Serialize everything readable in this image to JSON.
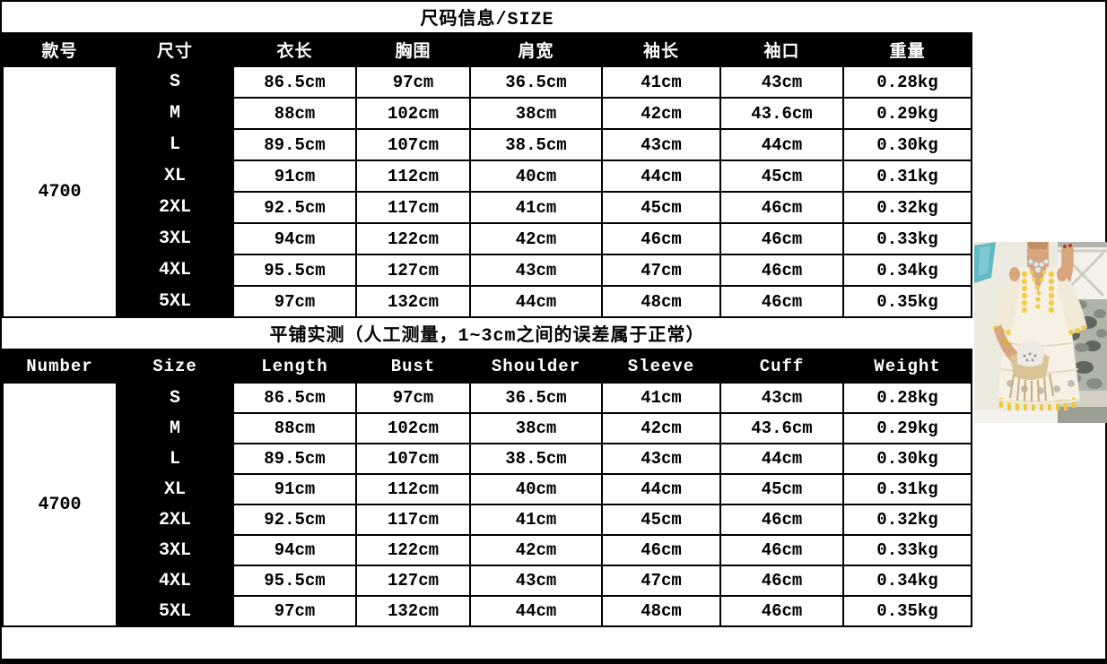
{
  "sheet": {
    "title": "尺码信息/SIZE",
    "note": "平铺实测（人工测量，1~3cm之间的误差属于正常）",
    "product_number": "4700"
  },
  "tables": [
    {
      "id": "cn",
      "title": "尺码信息/SIZE",
      "headers": [
        "款号",
        "尺寸",
        "衣长",
        "胸围",
        "肩宽",
        "袖长",
        "袖口",
        "重量"
      ]
    },
    {
      "id": "en",
      "title": "平铺实测（人工测量，1~3cm之间的误差属于正常）",
      "headers": [
        "Number",
        "Size",
        "Length",
        "Bust",
        "Shoulder",
        "Sleeve",
        "Cuff",
        "Weight"
      ]
    }
  ],
  "rows": [
    [
      "S",
      "86.5cm",
      "97cm",
      "36.5cm",
      "41cm",
      "43cm",
      "0.28kg"
    ],
    [
      "M",
      "88cm",
      "102cm",
      "38cm",
      "42cm",
      "43.6cm",
      "0.29kg"
    ],
    [
      "L",
      "89.5cm",
      "107cm",
      "38.5cm",
      "43cm",
      "44cm",
      "0.30kg"
    ],
    [
      "XL",
      "91cm",
      "112cm",
      "40cm",
      "44cm",
      "45cm",
      "0.31kg"
    ],
    [
      "2XL",
      "92.5cm",
      "117cm",
      "41cm",
      "45cm",
      "46cm",
      "0.32kg"
    ],
    [
      "3XL",
      "94cm",
      "122cm",
      "42cm",
      "46cm",
      "46cm",
      "0.33kg"
    ],
    [
      "4XL",
      "95.5cm",
      "127cm",
      "43cm",
      "47cm",
      "46cm",
      "0.34kg"
    ],
    [
      "5XL",
      "97cm",
      "132cm",
      "44cm",
      "48cm",
      "46cm",
      "0.35kg"
    ]
  ],
  "colors": {
    "header_bg": "#000000",
    "header_text": "#ffffff",
    "cell_bg": "#ffffff",
    "grid_line": "#000000",
    "dress_cream": "#f6f1e4",
    "dress_yellow": "#f1cd4a",
    "skin": "#d7a67f",
    "cobblestone": "#747b72",
    "teal_cloth": "#62b8c4"
  },
  "product_photo_alt": "model in white boho mini dress with yellow tassel trim holding fringe clutch"
}
